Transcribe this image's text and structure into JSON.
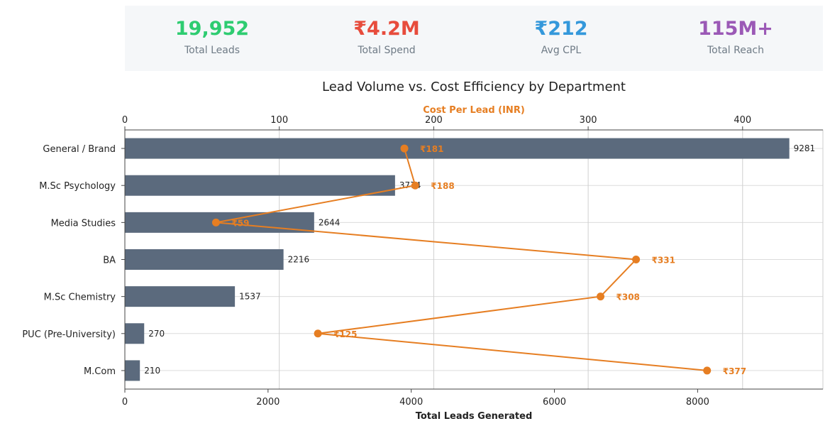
{
  "kpis": [
    {
      "value": "19,952",
      "label": "Total Leads",
      "color": "#2ecc71"
    },
    {
      "value": "₹4.2M",
      "label": "Total Spend",
      "color": "#e74c3c"
    },
    {
      "value": "₹212",
      "label": "Avg CPL",
      "color": "#3498db"
    },
    {
      "value": "115M+",
      "label": "Total Reach",
      "color": "#9b59b6"
    }
  ],
  "chart_data": {
    "type": "bar",
    "title": "Lead Volume vs. Cost Efficiency by Department",
    "xlabel": "Total Leads Generated",
    "x2label": "Cost Per Lead (INR)",
    "categories": [
      "General / Brand",
      "M.Sc Psychology",
      "Media Studies",
      "BA",
      "M.Sc Chemistry",
      "PUC (Pre-University)",
      "M.Com"
    ],
    "series": [
      {
        "name": "Total Leads",
        "type": "bar",
        "axis": "bottom",
        "values": [
          9281,
          3774,
          2644,
          2216,
          1537,
          270,
          210
        ],
        "labels": [
          "9281",
          "3774",
          "2644",
          "2216",
          "1537",
          "270",
          "210"
        ],
        "color": "#5b6a7d"
      },
      {
        "name": "Cost Per Lead",
        "type": "line",
        "axis": "top",
        "values": [
          181,
          188,
          59,
          331,
          308,
          125,
          377
        ],
        "labels": [
          "₹181",
          "₹188",
          "₹59",
          "₹331",
          "₹308",
          "₹125",
          "₹377"
        ],
        "color": "#e67e22"
      }
    ],
    "xlim": [
      0,
      9750
    ],
    "x2lim": [
      0,
      452
    ],
    "xticks": [
      0,
      2000,
      4000,
      6000,
      8000
    ],
    "x2ticks": [
      0,
      100,
      200,
      300,
      400
    ],
    "grid": true
  }
}
